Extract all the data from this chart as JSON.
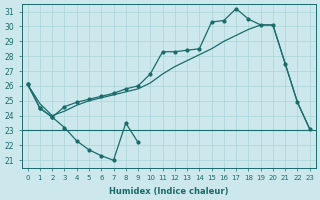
{
  "xlabel": "Humidex (Indice chaleur)",
  "bg_color": "#cce8ec",
  "grid_color": "#aad4d8",
  "line_color": "#1a6b6b",
  "xlim": [
    -0.5,
    23.5
  ],
  "ylim": [
    20.5,
    31.5
  ],
  "yticks": [
    21,
    22,
    23,
    24,
    25,
    26,
    27,
    28,
    29,
    30,
    31
  ],
  "xticks": [
    0,
    1,
    2,
    3,
    4,
    5,
    6,
    7,
    8,
    9,
    10,
    11,
    12,
    13,
    14,
    15,
    16,
    17,
    18,
    19,
    20,
    21,
    22,
    23
  ],
  "hline_y": 23,
  "line_zigzag": {
    "x": [
      0,
      1,
      2,
      3,
      4,
      5,
      6,
      7,
      8,
      9,
      10,
      20,
      21,
      22,
      23
    ],
    "y": [
      26.1,
      24.5,
      23.9,
      23.2,
      22.3,
      21.7,
      21.3,
      21.0,
      23.5,
      22.2,
      23.0,
      23.0,
      23.0,
      23.0,
      23.0
    ]
  },
  "line_smooth": {
    "x": [
      0,
      1,
      2,
      3,
      4,
      5,
      6,
      7,
      8,
      9,
      10,
      11,
      12,
      13,
      14,
      15,
      16,
      17,
      18,
      19,
      20,
      21,
      22,
      23
    ],
    "y": [
      26.1,
      24.8,
      24.0,
      24.3,
      24.7,
      25.0,
      25.2,
      25.4,
      25.6,
      25.8,
      26.2,
      26.8,
      27.3,
      27.7,
      28.1,
      28.5,
      29.0,
      29.4,
      29.8,
      30.1,
      30.1,
      27.5,
      24.9,
      23.1
    ]
  },
  "line_main": {
    "x": [
      0,
      1,
      2,
      3,
      4,
      5,
      6,
      7,
      8,
      9,
      10,
      11,
      12,
      13,
      14,
      15,
      16,
      17,
      18,
      19,
      20,
      21,
      22,
      23
    ],
    "y": [
      26.1,
      24.5,
      23.9,
      24.6,
      24.9,
      25.1,
      25.3,
      25.5,
      25.8,
      26.0,
      26.8,
      28.3,
      28.3,
      28.4,
      28.5,
      30.3,
      30.4,
      31.2,
      30.5,
      30.1,
      30.1,
      27.5,
      24.9,
      23.1
    ]
  }
}
